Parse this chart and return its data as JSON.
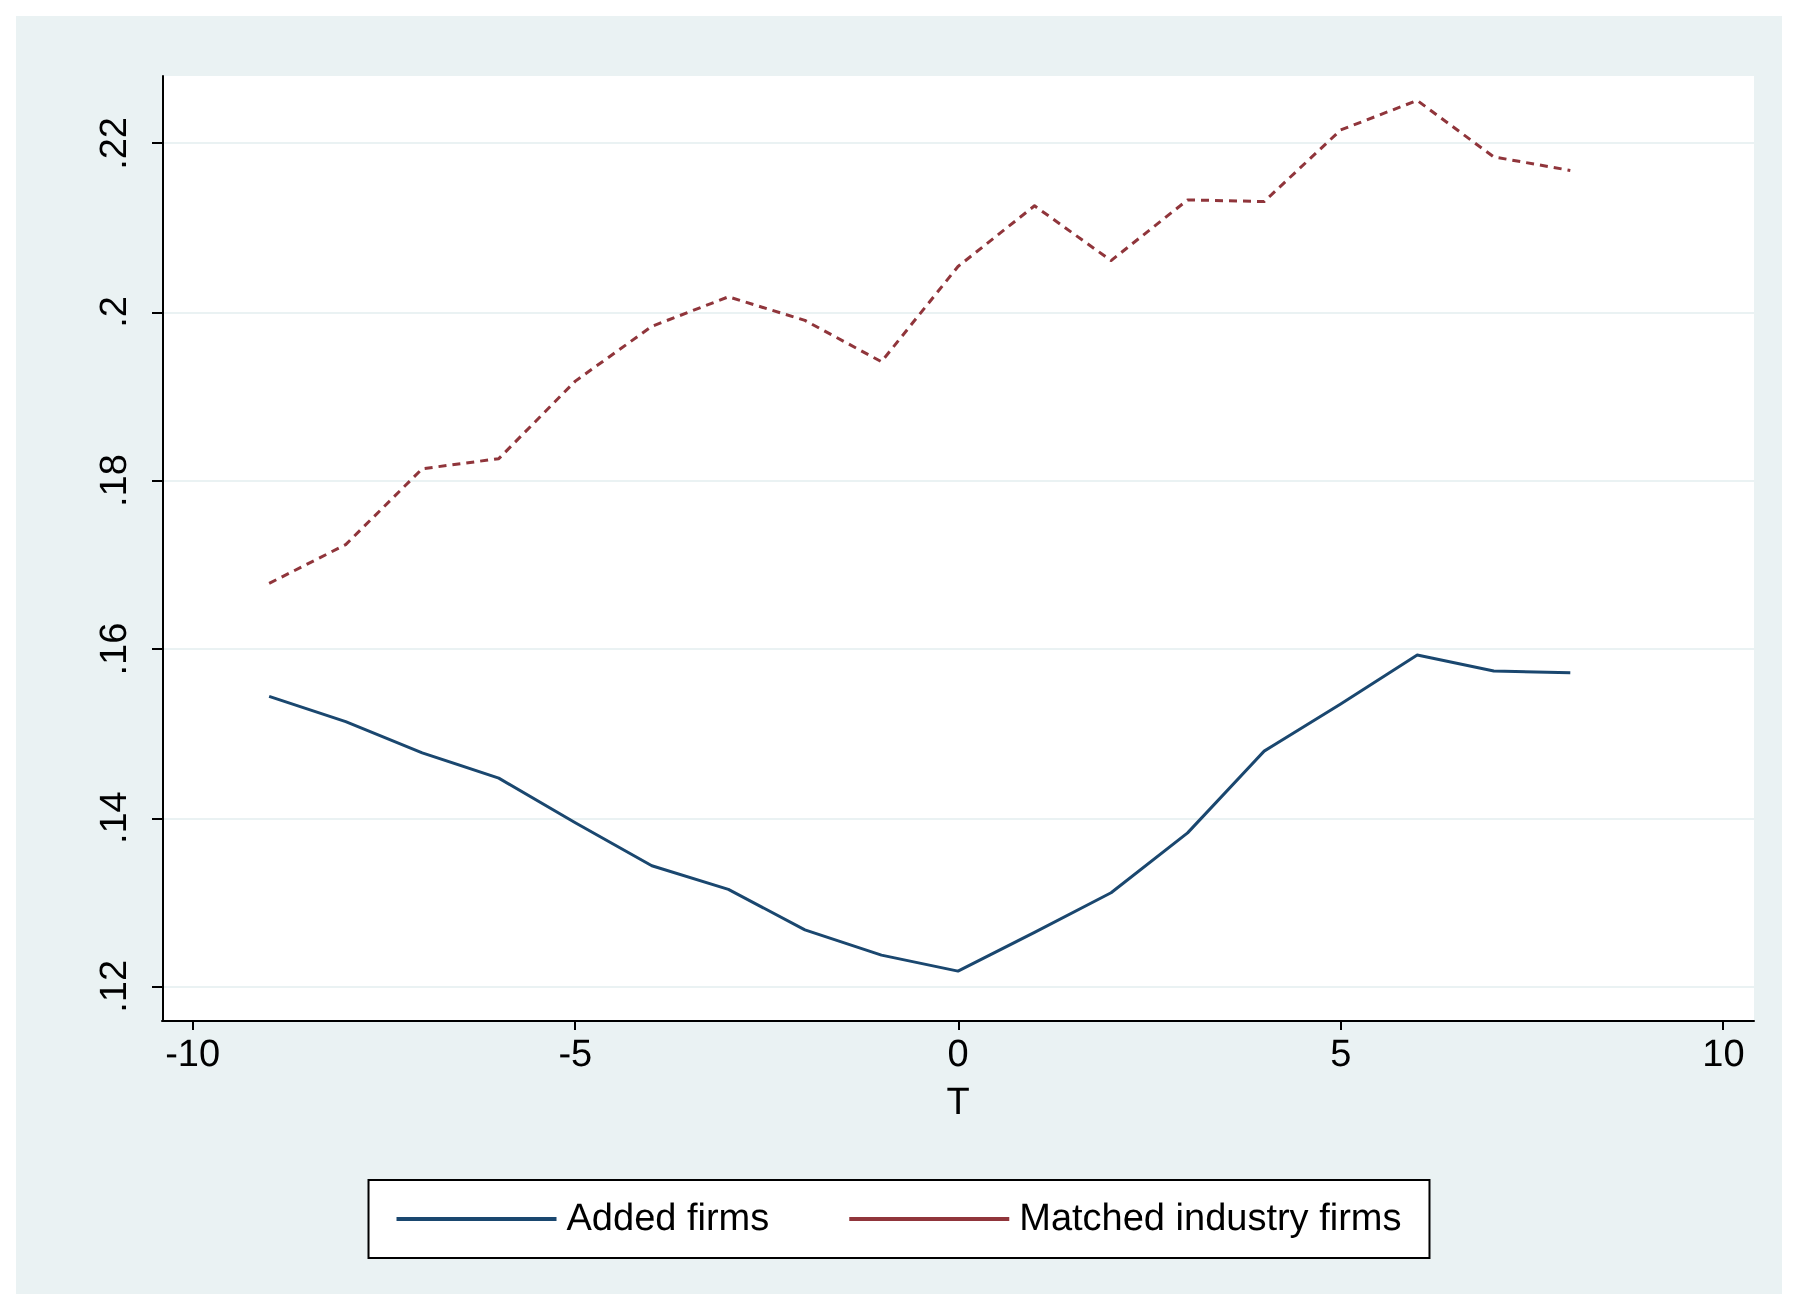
{
  "chart_data": {
    "type": "line",
    "xlabel": "T",
    "x": [
      -9,
      -8,
      -7,
      -6,
      -5,
      -4,
      -3,
      -2,
      -1,
      0,
      1,
      2,
      3,
      4,
      5,
      6,
      7,
      8
    ],
    "series": [
      {
        "name": "Added firms",
        "color": "#1a476f",
        "line_style": "solid",
        "values": [
          0.1544,
          0.1514,
          0.1477,
          0.1447,
          0.1394,
          0.1343,
          0.1315,
          0.1267,
          0.1237,
          0.1218,
          0.1264,
          0.1311,
          0.1382,
          0.1479,
          0.1535,
          0.1593,
          0.1574,
          0.1572
        ]
      },
      {
        "name": "Matched industry firms",
        "color": "#90353b",
        "line_style": "dashed",
        "values": [
          0.1678,
          0.1724,
          0.1814,
          0.1826,
          0.1918,
          0.1983,
          0.2018,
          0.199,
          0.1941,
          0.2054,
          0.2126,
          0.2061,
          0.2133,
          0.2131,
          0.2216,
          0.2251,
          0.2184,
          0.2168
        ]
      }
    ],
    "xlim": [
      -10.4,
      10.4
    ],
    "xticks": [
      -10,
      -5,
      0,
      5,
      10
    ],
    "ylim": [
      0.116,
      0.228
    ],
    "yticks": [
      {
        "value": 0.12,
        "label": ".12"
      },
      {
        "value": 0.14,
        "label": ".14"
      },
      {
        "value": 0.16,
        "label": ".16"
      },
      {
        "value": 0.18,
        "label": ".18"
      },
      {
        "value": 0.2,
        "label": ".2"
      },
      {
        "value": 0.22,
        "label": ".22"
      }
    ],
    "grid": "y",
    "legend": "bottom",
    "marker": "none"
  }
}
